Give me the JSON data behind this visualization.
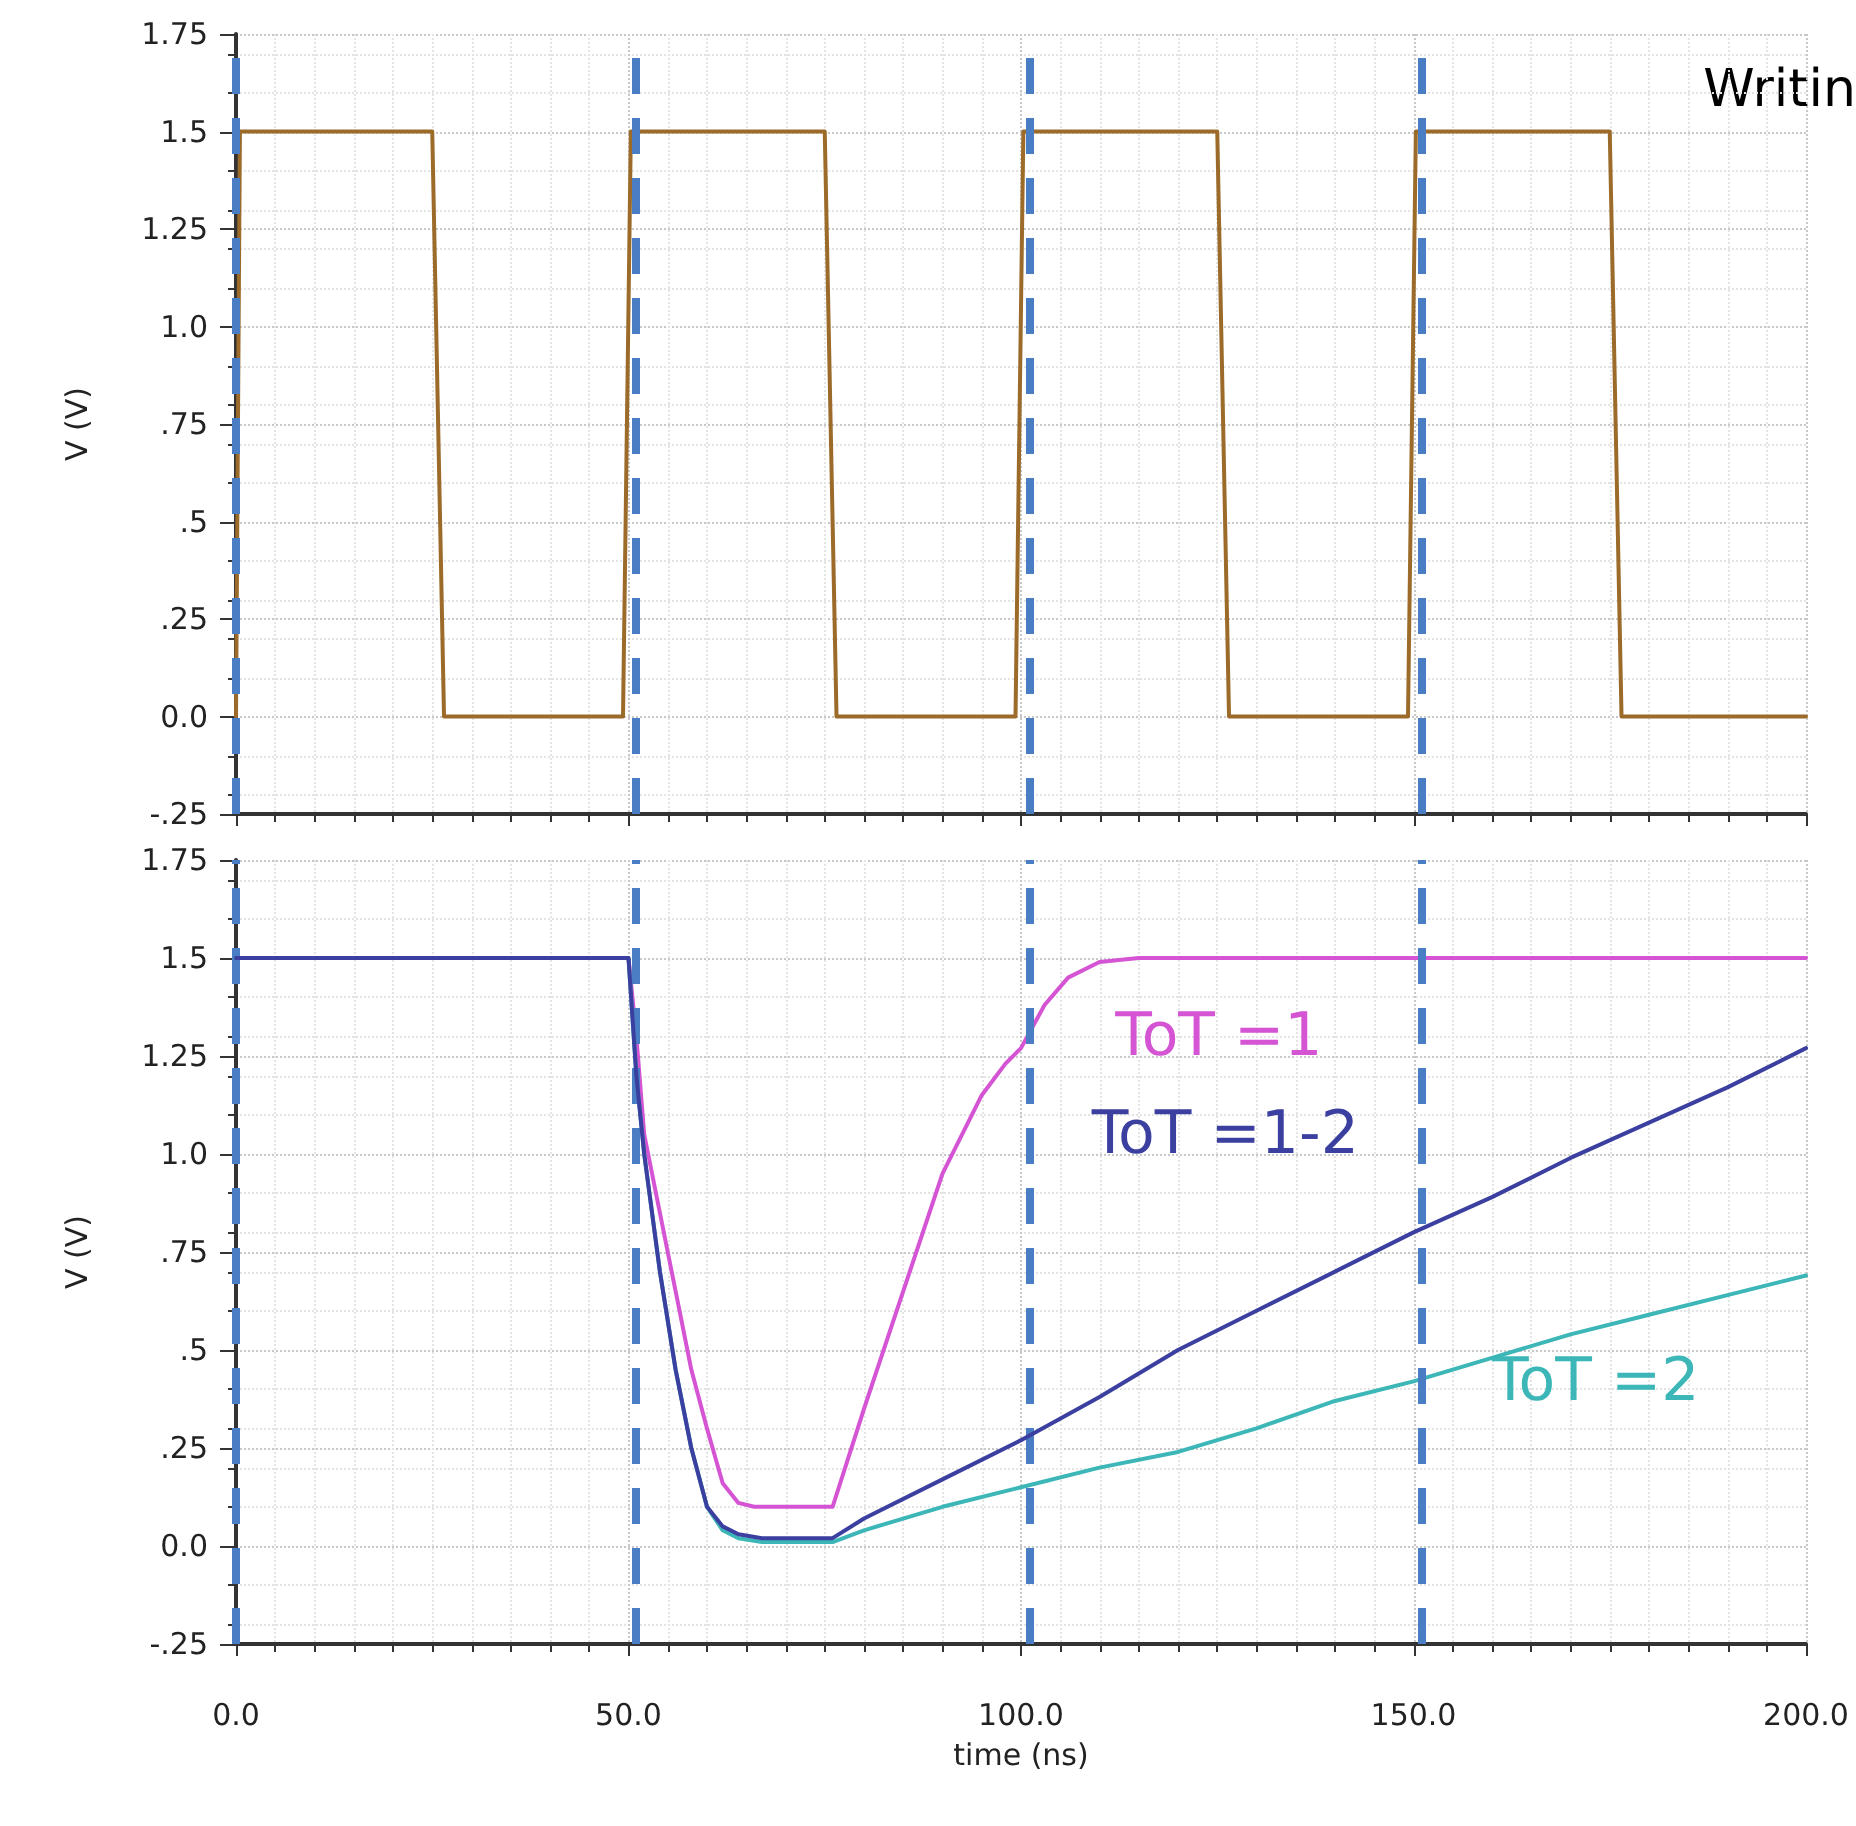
{
  "chart_data": [
    {
      "type": "line",
      "ylabel": "V (V)",
      "annotations": [
        "Writin"
      ],
      "xlim": [
        0,
        200
      ],
      "xticks": [
        {
          "value": 0,
          "label": null
        },
        {
          "value": 50,
          "label": null
        },
        {
          "value": 100,
          "label": null
        },
        {
          "value": 150,
          "label": null
        },
        {
          "value": 200,
          "label": null
        }
      ],
      "ylim": [
        -0.25,
        1.75
      ],
      "yticks": [
        {
          "value": -0.25,
          "label": "-.25"
        },
        {
          "value": 0,
          "label": "0.0"
        },
        {
          "value": 0.25,
          "label": ".25"
        },
        {
          "value": 0.5,
          "label": ".5"
        },
        {
          "value": 0.75,
          "label": ".75"
        },
        {
          "value": 1,
          "label": "1.0"
        },
        1.25,
        1.5,
        1.75
      ],
      "tick_labels": "y",
      "grid": true,
      "ref_lines": [
        {
          "axis": "x",
          "value": 0,
          "color": "#4a7ec4",
          "line_style": "dashed"
        },
        {
          "axis": "x",
          "value": 51,
          "color": "#4a7ec4",
          "line_style": "dashed"
        },
        {
          "axis": "x",
          "value": 101,
          "color": "#4a7ec4",
          "line_style": "dashed"
        },
        {
          "axis": "x",
          "value": 151,
          "color": "#4a7ec4",
          "line_style": "dashed"
        }
      ],
      "series": [
        {
          "color": "#9c6b2a",
          "x": [
            0,
            0.5,
            25,
            26.5,
            49.3,
            50.3,
            75,
            76.5,
            99.3,
            100.3,
            125,
            126.5,
            149.3,
            150.3,
            175,
            176.5,
            200
          ],
          "values": [
            0,
            1.5,
            1.5,
            0,
            0,
            1.5,
            1.5,
            0,
            0,
            1.5,
            1.5,
            0,
            0,
            1.5,
            1.5,
            0,
            0
          ]
        }
      ]
    },
    {
      "type": "line",
      "xlabel": "time (ns)",
      "ylabel": "V (V)",
      "xlim": [
        0,
        200
      ],
      "xticks": [
        {
          "value": 0,
          "label": "0.0"
        },
        {
          "value": 50,
          "label": "50.0"
        },
        {
          "value": 100,
          "label": "100.0"
        },
        {
          "value": 150,
          "label": "150.0"
        },
        {
          "value": 200,
          "label": "200.0"
        }
      ],
      "ylim": [
        -0.25,
        1.75
      ],
      "yticks": [
        {
          "value": -0.25,
          "label": "-.25"
        },
        {
          "value": 0,
          "label": "0.0"
        },
        {
          "value": 0.25,
          "label": ".25"
        },
        {
          "value": 0.5,
          "label": ".5"
        },
        {
          "value": 0.75,
          "label": ".75"
        },
        {
          "value": 1,
          "label": "1.0"
        },
        1.25,
        1.5,
        1.75
      ],
      "grid": true,
      "ref_lines": [
        {
          "axis": "x",
          "value": 0,
          "color": "#4a7ec4",
          "line_style": "dashed"
        },
        {
          "axis": "x",
          "value": 51,
          "color": "#4a7ec4",
          "line_style": "dashed"
        },
        {
          "axis": "x",
          "value": 101,
          "color": "#4a7ec4",
          "line_style": "dashed"
        },
        {
          "axis": "x",
          "value": 151,
          "color": "#4a7ec4",
          "line_style": "dashed"
        }
      ],
      "series": [
        {
          "name": "ToT =1",
          "color": "#d454d4",
          "x": [
            49,
            50,
            51,
            52,
            54,
            56,
            58,
            60,
            62,
            64,
            66,
            76,
            80,
            85,
            90,
            95,
            98,
            100,
            103,
            106,
            110,
            115,
            200
          ],
          "values": [
            1.5,
            1.5,
            1.3,
            1.05,
            0.85,
            0.65,
            0.45,
            0.3,
            0.16,
            0.11,
            0.1,
            0.1,
            0.35,
            0.65,
            0.95,
            1.15,
            1.23,
            1.27,
            1.38,
            1.45,
            1.49,
            1.5,
            1.5
          ]
        },
        {
          "name": "ToT =2",
          "color": "#3cb6b6",
          "x": [
            49,
            50,
            51,
            52,
            54,
            56,
            58,
            60,
            62,
            64,
            67,
            76,
            80,
            90,
            100,
            110,
            120,
            130,
            140,
            150,
            160,
            170,
            180,
            190,
            200
          ],
          "values": [
            1.5,
            1.5,
            1.2,
            1.0,
            0.7,
            0.45,
            0.25,
            0.1,
            0.04,
            0.02,
            0.01,
            0.01,
            0.04,
            0.1,
            0.15,
            0.2,
            0.24,
            0.3,
            0.37,
            0.42,
            0.48,
            0.54,
            0.59,
            0.64,
            0.69
          ]
        },
        {
          "name": "ToT =1-2",
          "color": "#3b3fa0",
          "x": [
            0,
            49,
            50,
            51,
            52,
            54,
            56,
            58,
            60,
            62,
            64,
            67,
            76,
            80,
            90,
            100,
            110,
            120,
            130,
            140,
            150,
            160,
            170,
            180,
            190,
            200
          ],
          "values": [
            1.5,
            1.5,
            1.5,
            1.2,
            1.0,
            0.7,
            0.45,
            0.25,
            0.1,
            0.05,
            0.03,
            0.02,
            0.02,
            0.07,
            0.17,
            0.27,
            0.38,
            0.5,
            0.6,
            0.7,
            0.8,
            0.89,
            0.99,
            1.08,
            1.17,
            1.27
          ]
        }
      ]
    }
  ]
}
